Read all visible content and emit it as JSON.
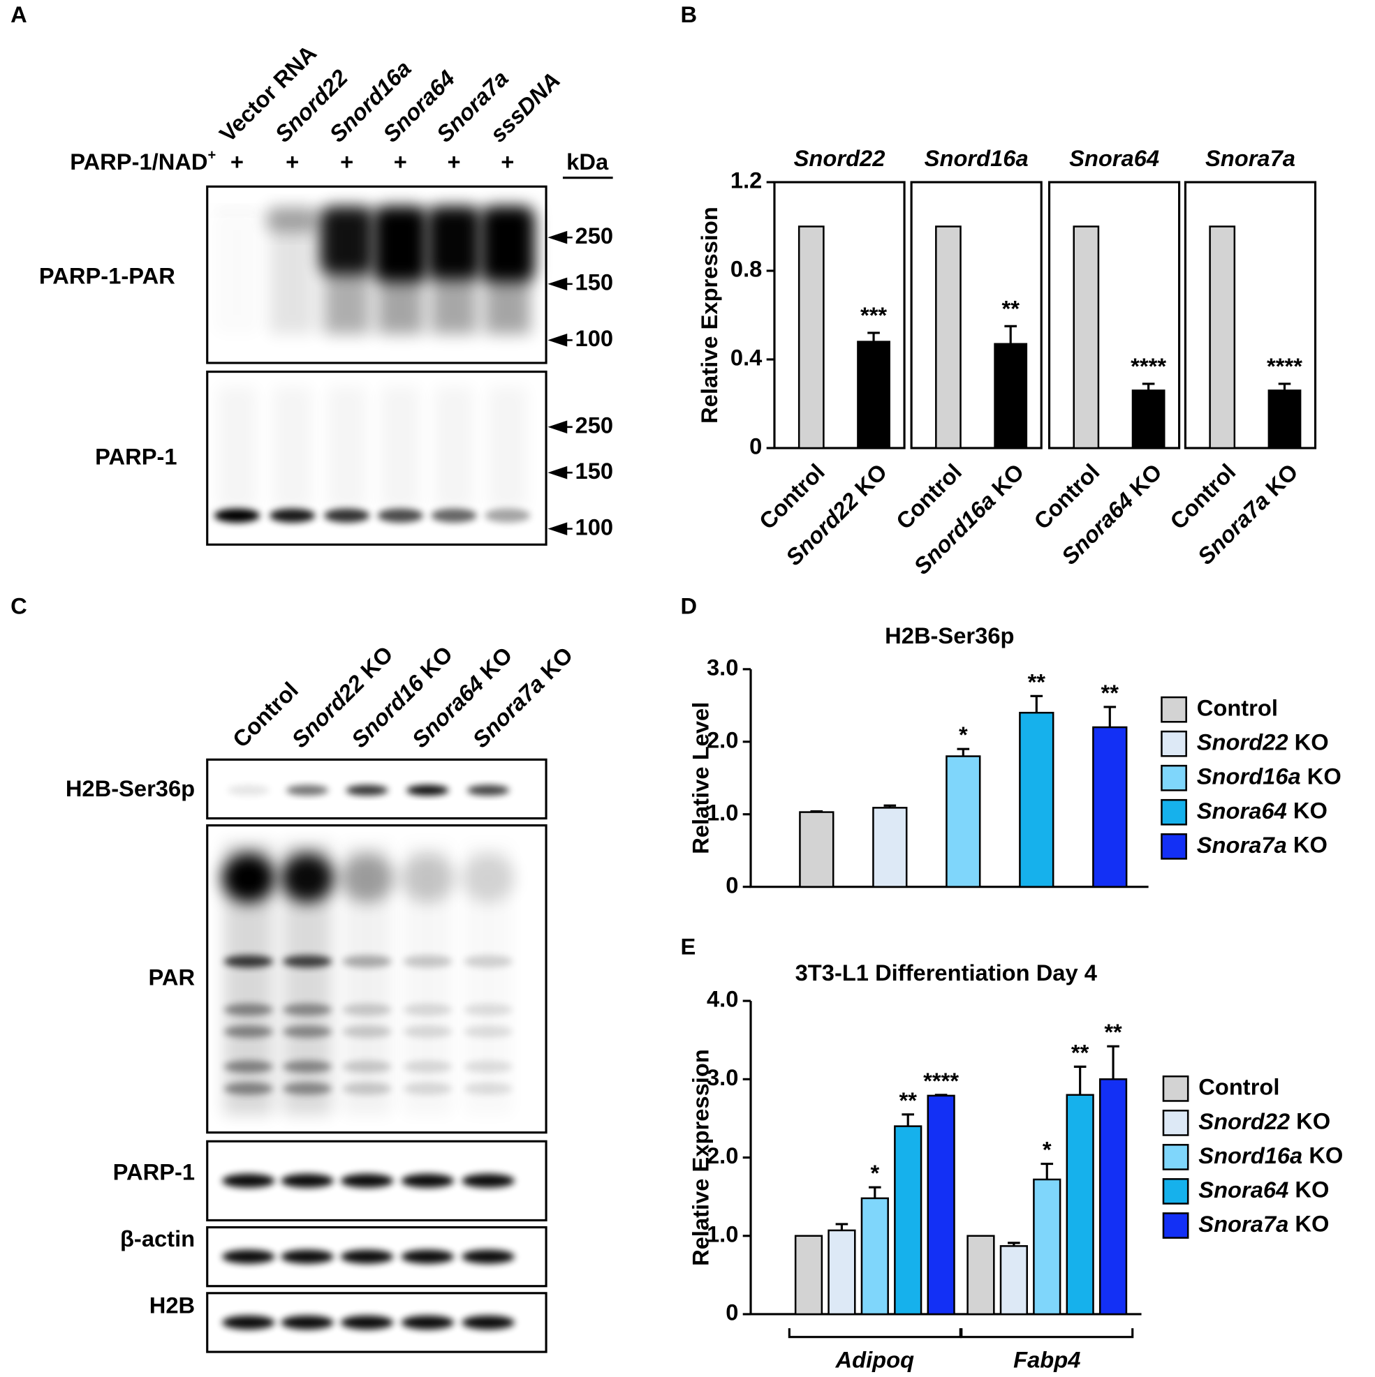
{
  "panel_labels": [
    "A",
    "B",
    "C",
    "D",
    "E"
  ],
  "blot_a": {
    "lanes": [
      "Vector RNA",
      "Snord22",
      "Snord16a",
      "Snora64",
      "Snora7a",
      "sssDNA"
    ],
    "treatment": "PARP-1/NAD+",
    "treatment_marks": [
      "+",
      "+",
      "+",
      "+",
      "+",
      "+"
    ],
    "unit": "kDa",
    "rows": [
      {
        "label": "PARP-1-PAR",
        "markers": [
          250,
          150,
          100
        ]
      },
      {
        "label": "PARP-1",
        "markers": [
          250,
          150,
          100
        ]
      }
    ]
  },
  "blot_c": {
    "lanes": [
      "Control",
      "Snord22 KO",
      "Snord16 KO",
      "Snora64 KO",
      "Snora7a KO"
    ],
    "rows": [
      "H2B-Ser36p",
      "PAR",
      "PARP-1",
      "β-actin",
      "H2B"
    ]
  },
  "chart_data": [
    {
      "type": "bar",
      "ylabel": "Relative Expression",
      "ylim": [
        0,
        1.2
      ],
      "yticks": [
        0,
        0.4,
        0.8,
        1.2
      ],
      "colors": [
        "#d3d3d3",
        "#000000"
      ],
      "facets": [
        {
          "title": "Snord22",
          "categories": [
            "Control",
            "Snord22 KO"
          ],
          "values": [
            1.0,
            0.48
          ],
          "errors": [
            0,
            0.04
          ],
          "annotations": [
            null,
            "***"
          ]
        },
        {
          "title": "Snord16a",
          "categories": [
            "Control",
            "Snord16a KO"
          ],
          "values": [
            1.0,
            0.47
          ],
          "errors": [
            0,
            0.08
          ],
          "annotations": [
            null,
            "**"
          ]
        },
        {
          "title": "Snora64",
          "categories": [
            "Control",
            "Snora64 KO"
          ],
          "values": [
            1.0,
            0.26
          ],
          "errors": [
            0,
            0.03
          ],
          "annotations": [
            null,
            "****"
          ]
        },
        {
          "title": "Snora7a",
          "categories": [
            "Control",
            "Snora7a KO"
          ],
          "values": [
            1.0,
            0.26
          ],
          "errors": [
            0,
            0.03
          ],
          "annotations": [
            null,
            "****"
          ]
        }
      ]
    },
    {
      "type": "bar",
      "title": "H2B-Ser36p",
      "ylabel": "Relative Level",
      "ylim": [
        0,
        3
      ],
      "yticks": [
        0,
        {
          "value": 1,
          "label": "1.0"
        },
        {
          "value": 2,
          "label": "2.0"
        },
        {
          "value": 3,
          "label": "3.0"
        }
      ],
      "legend": "right",
      "series": [
        {
          "name": "Control",
          "color": "#d3d3d3",
          "values": [
            1.03
          ],
          "errors": [
            0.01
          ],
          "annotations": [
            null
          ]
        },
        {
          "name": "Snord22 KO",
          "color": "#dde9f6",
          "values": [
            1.09
          ],
          "errors": [
            0.03
          ],
          "annotations": [
            null
          ]
        },
        {
          "name": "Snord16a KO",
          "color": "#7fd6fb",
          "values": [
            1.8
          ],
          "errors": [
            0.1
          ],
          "annotations": [
            "*"
          ]
        },
        {
          "name": "Snora64 KO",
          "color": "#16b1ec",
          "values": [
            2.4
          ],
          "errors": [
            0.23
          ],
          "annotations": [
            "**"
          ]
        },
        {
          "name": "Snora7a KO",
          "color": "#1330f5",
          "values": [
            2.2
          ],
          "errors": [
            0.28
          ],
          "annotations": [
            "**"
          ]
        }
      ]
    },
    {
      "type": "bar",
      "title": "3T3-L1 Differentiation Day 4",
      "ylabel": "Relative Expression",
      "categories": [
        "Adipoq",
        "Fabp4"
      ],
      "ylim": [
        0,
        4
      ],
      "yticks": [
        0,
        {
          "value": 1,
          "label": "1.0"
        },
        {
          "value": 2,
          "label": "2.0"
        },
        {
          "value": 3,
          "label": "3.0"
        },
        {
          "value": 4,
          "label": "4.0"
        }
      ],
      "legend": "right",
      "series": [
        {
          "name": "Control",
          "color": "#d3d3d3",
          "values": [
            1.0,
            1.0
          ],
          "errors": [
            0,
            0
          ],
          "annotations": [
            null,
            null
          ]
        },
        {
          "name": "Snord22 KO",
          "color": "#dde9f6",
          "values": [
            1.07,
            0.87
          ],
          "errors": [
            0.08,
            0.04
          ],
          "annotations": [
            null,
            null
          ]
        },
        {
          "name": "Snord16a KO",
          "color": "#7fd6fb",
          "values": [
            1.48,
            1.72
          ],
          "errors": [
            0.14,
            0.2
          ],
          "annotations": [
            "*",
            "*"
          ]
        },
        {
          "name": "Snora64 KO",
          "color": "#16b1ec",
          "values": [
            2.4,
            2.8
          ],
          "errors": [
            0.15,
            0.36
          ],
          "annotations": [
            "**",
            "**"
          ]
        },
        {
          "name": "Snora7a KO",
          "color": "#1330f5",
          "values": [
            2.79,
            3.0
          ],
          "errors": [
            0.01,
            0.42
          ],
          "annotations": [
            "****",
            "**"
          ]
        }
      ]
    }
  ]
}
